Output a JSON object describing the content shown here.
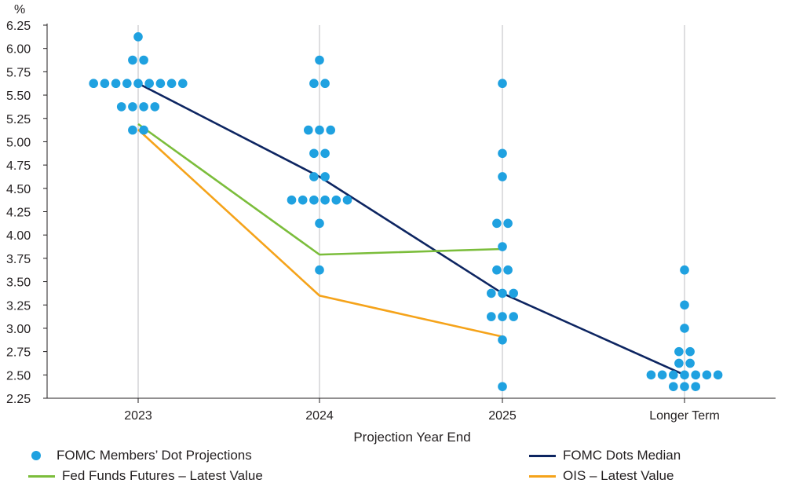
{
  "chart_data": {
    "type": "scatter",
    "unit_label": "%",
    "xlabel": "Projection Year End",
    "categories": [
      "2023",
      "2024",
      "2025",
      "Longer Term"
    ],
    "ylim": [
      2.25,
      6.25
    ],
    "yticks": [
      "2.25",
      "2.50",
      "2.75",
      "3.00",
      "3.25",
      "3.50",
      "3.75",
      "4.00",
      "4.25",
      "4.50",
      "4.75",
      "5.00",
      "5.25",
      "5.50",
      "5.75",
      "6.00",
      "6.25"
    ],
    "grid": "vertical",
    "colors": {
      "dots": "#1fa1e0",
      "median": "#0d2561",
      "futures": "#7bbd3b",
      "ois": "#f5a31a"
    },
    "dots": [
      {
        "category": "2023",
        "rows": [
          {
            "y": 6.125,
            "count": 1
          },
          {
            "y": 5.875,
            "count": 2
          },
          {
            "y": 5.625,
            "count": 9
          },
          {
            "y": 5.375,
            "count": 4
          },
          {
            "y": 5.125,
            "count": 2
          }
        ]
      },
      {
        "category": "2024",
        "rows": [
          {
            "y": 5.875,
            "count": 1
          },
          {
            "y": 5.625,
            "count": 2
          },
          {
            "y": 5.125,
            "count": 3
          },
          {
            "y": 4.875,
            "count": 2
          },
          {
            "y": 4.625,
            "count": 2
          },
          {
            "y": 4.375,
            "count": 6
          },
          {
            "y": 4.125,
            "count": 1
          },
          {
            "y": 3.625,
            "count": 1
          }
        ]
      },
      {
        "category": "2025",
        "rows": [
          {
            "y": 5.625,
            "count": 1
          },
          {
            "y": 4.875,
            "count": 1
          },
          {
            "y": 4.625,
            "count": 1
          },
          {
            "y": 4.125,
            "count": 2
          },
          {
            "y": 3.875,
            "count": 1
          },
          {
            "y": 3.625,
            "count": 2
          },
          {
            "y": 3.375,
            "count": 3
          },
          {
            "y": 3.125,
            "count": 3
          },
          {
            "y": 2.875,
            "count": 1
          },
          {
            "y": 2.375,
            "count": 1
          }
        ]
      },
      {
        "category": "Longer Term",
        "rows": [
          {
            "y": 3.625,
            "count": 1
          },
          {
            "y": 3.25,
            "count": 1
          },
          {
            "y": 3.0,
            "count": 1
          },
          {
            "y": 2.75,
            "count": 2
          },
          {
            "y": 2.625,
            "count": 2
          },
          {
            "y": 2.5,
            "count": 7
          },
          {
            "y": 2.375,
            "count": 3
          }
        ]
      }
    ],
    "series": [
      {
        "name": "FOMC Dots Median",
        "color": "#0d2561",
        "categories": [
          "2023",
          "2024",
          "2025",
          "Longer Term"
        ],
        "values": [
          5.625,
          4.625,
          3.375,
          2.5
        ]
      },
      {
        "name": "Fed Funds Futures – Latest Value",
        "color": "#7bbd3b",
        "categories": [
          "2023",
          "2024",
          "2025"
        ],
        "values": [
          5.19,
          3.79,
          3.85
        ]
      },
      {
        "name": "OIS – Latest Value",
        "color": "#f5a31a",
        "categories": [
          "2023",
          "2024",
          "2025"
        ],
        "values": [
          5.13,
          3.35,
          2.91
        ]
      }
    ],
    "legend": [
      {
        "label": "FOMC Members’ Dot Projections",
        "type": "dot",
        "color": "#1fa1e0"
      },
      {
        "label": "Fed Funds Futures – Latest Value",
        "type": "line",
        "color": "#7bbd3b"
      },
      {
        "label": "FOMC Dots Median",
        "type": "line",
        "color": "#0d2561"
      },
      {
        "label": "OIS – Latest Value",
        "type": "line",
        "color": "#f5a31a"
      }
    ],
    "legend_position": "bottom"
  }
}
